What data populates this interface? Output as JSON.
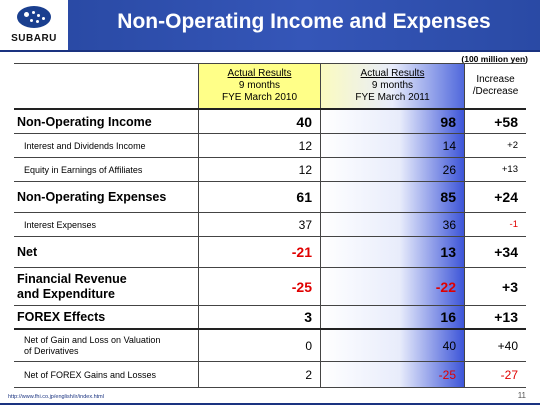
{
  "header": {
    "logo_text": "SUBARU",
    "title": "Non-Operating Income and Expenses"
  },
  "unit_note": "(100 million yen)",
  "columns": {
    "a_line1": "Actual Results",
    "a_line2": "9 months",
    "a_line3": "FYE March 2010",
    "b_line1": "Actual Results",
    "b_line2": "9 months",
    "b_line3": "FYE March 2011",
    "c_line1": "Increase",
    "c_line2": "/Decrease"
  },
  "rows": [
    {
      "label": "Non-Operating Income",
      "a": "40",
      "b": "98",
      "c": "+58"
    },
    {
      "label": "Interest and Dividends Income",
      "a": "12",
      "b": "14",
      "c": "+2"
    },
    {
      "label": "Equity in Earnings of Affiliates",
      "a": "12",
      "b": "26",
      "c": "+13"
    },
    {
      "label": "Non-Operating Expenses",
      "a": "61",
      "b": "85",
      "c": "+24"
    },
    {
      "label": "Interest Expenses",
      "a": "37",
      "b": "36",
      "c": "-1"
    },
    {
      "label": "Net",
      "a": "-21",
      "b": "13",
      "c": "+34"
    },
    {
      "label_line1": "Financial Revenue",
      "label_line2": "and Expenditure",
      "a": "-25",
      "b": "-22",
      "c": "+3"
    },
    {
      "label": "FOREX Effects",
      "a": "3",
      "b": "16",
      "c": "+13"
    },
    {
      "label_line1": "Net of Gain and Loss on Valuation",
      "label_line2": "of Derivatives",
      "a": "0",
      "b": "40",
      "c": "+40"
    },
    {
      "label": "Net of FOREX Gains and Losses",
      "a": "2",
      "b": "-25",
      "c": "-27"
    }
  ],
  "footer": {
    "url": "http://www.fhi.co.jp/english/ir/index.html",
    "page_number": "11"
  },
  "colors": {
    "title_bar": "#2a4aa5",
    "highlight_yellow": "#ffff88",
    "negative_red": "#e00000",
    "gradient_blue": "#3d55d8"
  }
}
